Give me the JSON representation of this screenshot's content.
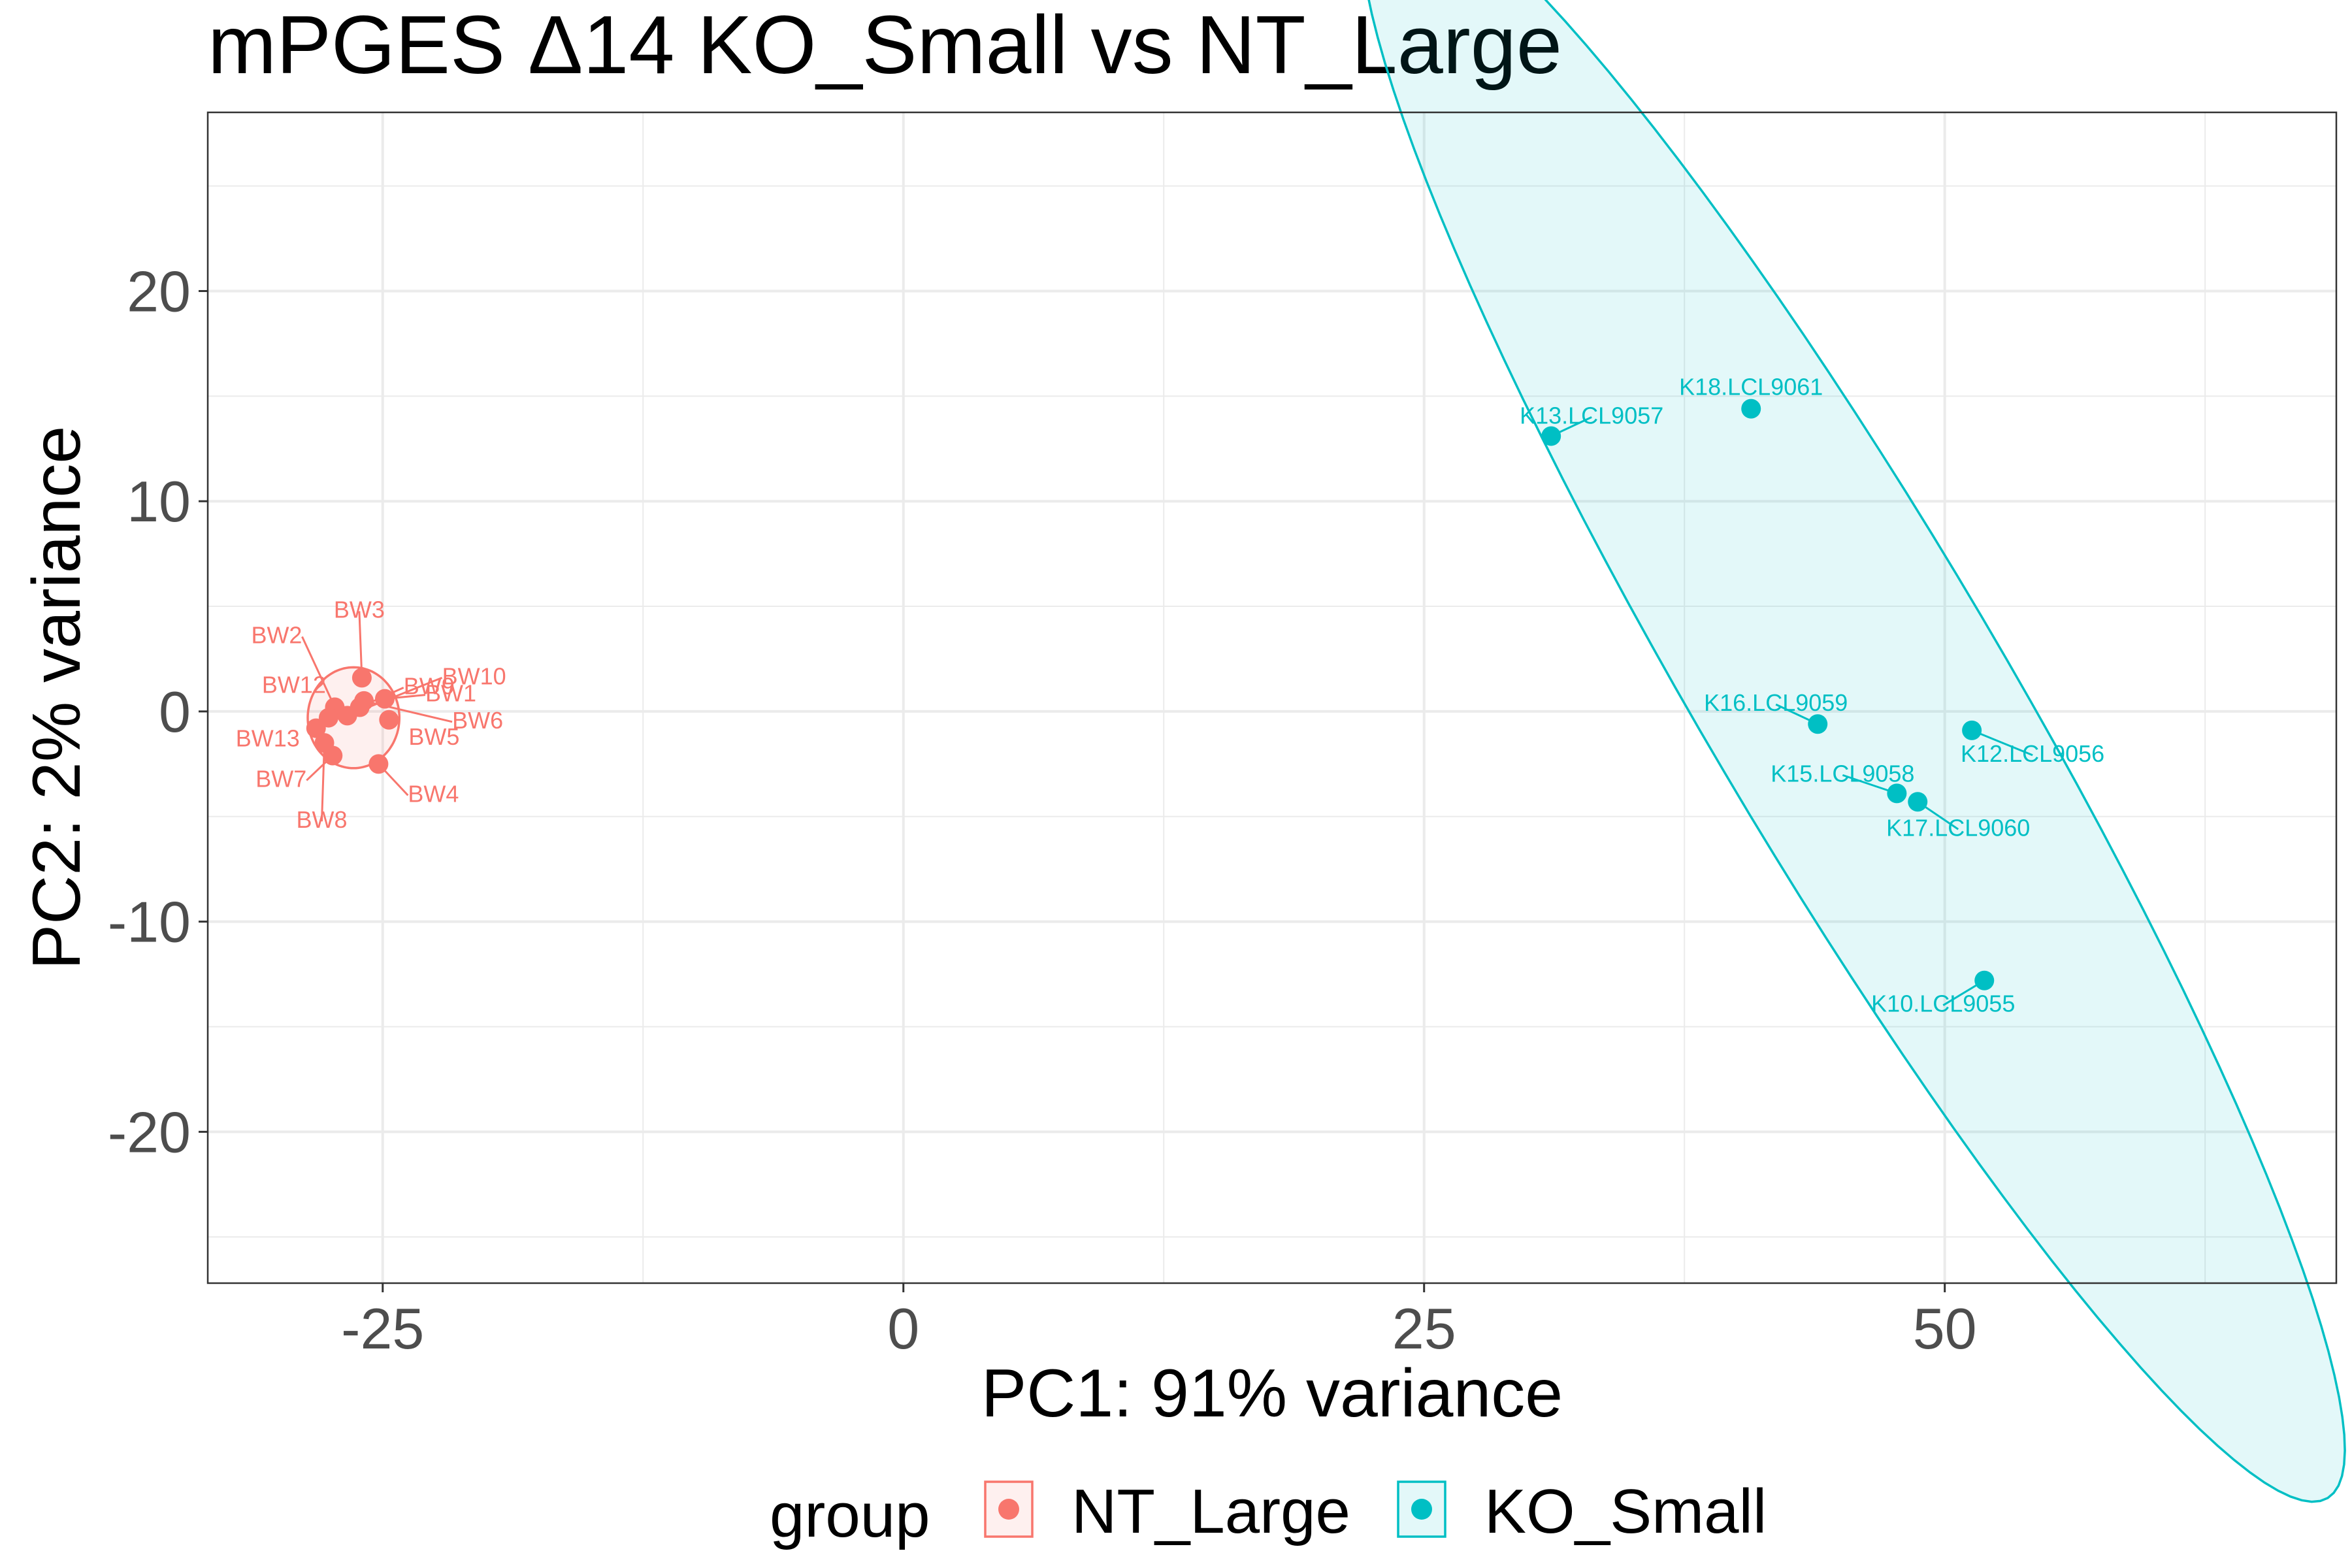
{
  "chart_data": {
    "type": "scatter",
    "title": "mPGES Δ14 KO_Small vs NT_Large",
    "xlabel": "PC1: 91% variance",
    "ylabel": "PC2: 2% variance",
    "xlim": [
      -33.4,
      68.8
    ],
    "ylim": [
      -27.2,
      28.5
    ],
    "xticks": [
      -25,
      0,
      25,
      50
    ],
    "xtick_labels": [
      "-25",
      "0",
      "25",
      "50"
    ],
    "yticks": [
      -20,
      -10,
      0,
      10,
      20
    ],
    "ytick_labels": [
      "-20",
      "-10",
      "0",
      "10",
      "20"
    ],
    "grid": true,
    "legend": {
      "title": "group",
      "position": "bottom"
    },
    "series": [
      {
        "name": "NT_Large",
        "color": "#F8766D",
        "points": [
          {
            "label": "BW1",
            "x": -24.9,
            "y": 0.6
          },
          {
            "label": "BW2",
            "x": -27.3,
            "y": 0.2
          },
          {
            "label": "BW3",
            "x": -26.0,
            "y": 1.6
          },
          {
            "label": "BW4",
            "x": -25.2,
            "y": -2.5
          },
          {
            "label": "BW5",
            "x": -24.7,
            "y": -0.4
          },
          {
            "label": "BW6",
            "x": -25.9,
            "y": 0.5
          },
          {
            "label": "BW7",
            "x": -27.4,
            "y": -2.1
          },
          {
            "label": "BW8",
            "x": -27.8,
            "y": -1.5
          },
          {
            "label": "BW9",
            "x": -26.1,
            "y": 0.2
          },
          {
            "label": "BW10",
            "x": -26.7,
            "y": -0.2
          },
          {
            "label": "BW12",
            "x": -27.6,
            "y": -0.3
          },
          {
            "label": "BW13",
            "x": -28.2,
            "y": -0.8
          }
        ],
        "ellipse": {
          "cx": -26.4,
          "cy": -0.3,
          "rx": 2.2,
          "ry": 2.4,
          "angle": 0
        }
      },
      {
        "name": "KO_Small",
        "color": "#00BFC4",
        "points": [
          {
            "label": "K10.LCL9055",
            "x": 51.9,
            "y": -12.8
          },
          {
            "label": "K12.LCL9056",
            "x": 51.3,
            "y": -0.9
          },
          {
            "label": "K13.LCL9057",
            "x": 31.1,
            "y": 13.1
          },
          {
            "label": "K15.LCL9058",
            "x": 47.7,
            "y": -3.9
          },
          {
            "label": "K16.LCL9059",
            "x": 43.9,
            "y": -0.6
          },
          {
            "label": "K17.LCL9060",
            "x": 48.7,
            "y": -4.3
          },
          {
            "label": "K18.LCL9061",
            "x": 40.7,
            "y": 14.4
          }
        ],
        "ellipse": {
          "cx": 45.6,
          "cy": 0.8,
          "rx": 44.5,
          "ry": 7.2,
          "angle": -59.2
        }
      }
    ]
  }
}
